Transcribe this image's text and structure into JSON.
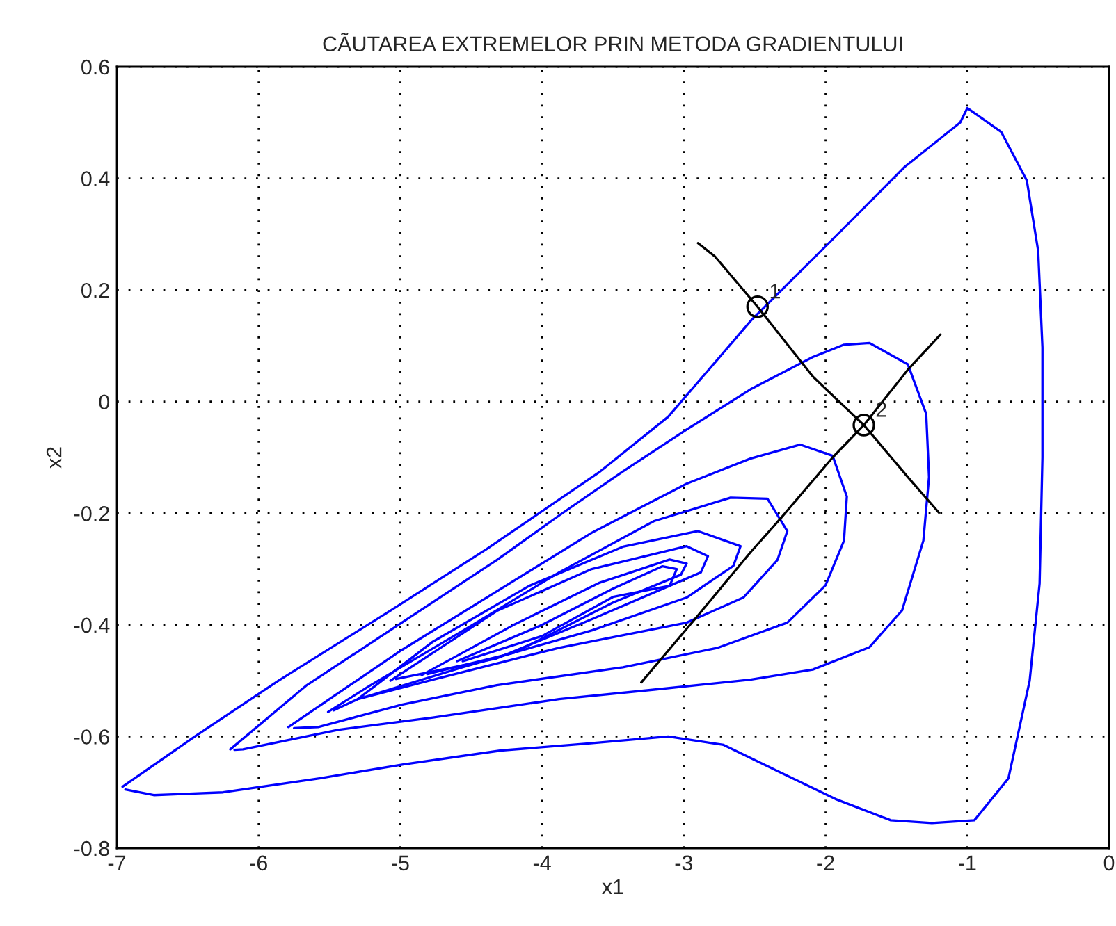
{
  "chart_data": {
    "type": "line",
    "title": "CÃUTAREA EXTREMELOR PRIN METODA GRADIENTULUI",
    "xlabel": "x1",
    "ylabel": "x2",
    "xlim": [
      -7,
      0
    ],
    "ylim": [
      -0.8,
      0.6
    ],
    "xticks": [
      -7,
      -6,
      -5,
      -4,
      -3,
      -2,
      -1,
      0
    ],
    "yticks": [
      -0.8,
      -0.6,
      -0.4,
      -0.2,
      0,
      0.2,
      0.4,
      0.6
    ],
    "grid": true,
    "line_style": "solid",
    "marker": "none",
    "series": [
      {
        "color": "#0000ff",
        "x": [
          -6.96,
          -6.45,
          -5.86,
          -5.08,
          -4.39,
          -3.6,
          -3.11,
          -2.52,
          -1.93,
          -1.44,
          -1.05,
          -1.0,
          -0.76,
          -0.58,
          -0.5,
          -0.47,
          -0.47,
          -0.49,
          -0.56,
          -0.71,
          -0.95,
          -1.25,
          -1.54,
          -1.93,
          -2.33,
          -2.72,
          -3.11,
          -3.7,
          -4.29,
          -4.98,
          -5.57,
          -6.25,
          -6.74,
          -6.94
        ],
        "values": [
          -0.69,
          -0.6,
          -0.5,
          -0.376,
          -0.264,
          -0.127,
          -0.027,
          0.147,
          0.296,
          0.421,
          0.5,
          0.526,
          0.483,
          0.396,
          0.27,
          0.097,
          -0.1,
          -0.326,
          -0.5,
          -0.675,
          -0.75,
          -0.755,
          -0.75,
          -0.712,
          -0.663,
          -0.615,
          -0.6,
          -0.613,
          -0.625,
          -0.65,
          -0.675,
          -0.7,
          -0.705,
          -0.695
        ]
      },
      {
        "color": "#0000ff",
        "x": [
          -6.2,
          -5.66,
          -4.99,
          -4.32,
          -3.88,
          -3.43,
          -2.98,
          -2.53,
          -2.09,
          -1.87,
          -1.69,
          -1.42,
          -1.29,
          -1.27,
          -1.31,
          -1.46,
          -1.69,
          -2.09,
          -2.53,
          -3.21,
          -3.88,
          -4.77,
          -5.44,
          -6.11,
          -6.17
        ],
        "values": [
          -0.623,
          -0.508,
          -0.396,
          -0.284,
          -0.204,
          -0.125,
          -0.05,
          0.022,
          0.08,
          0.102,
          0.105,
          0.067,
          -0.022,
          -0.135,
          -0.249,
          -0.374,
          -0.44,
          -0.48,
          -0.498,
          -0.516,
          -0.533,
          -0.566,
          -0.588,
          -0.623,
          -0.624
        ]
      },
      {
        "color": "#0000ff",
        "x": [
          -5.79,
          -4.99,
          -4.32,
          -3.65,
          -2.98,
          -2.53,
          -2.18,
          -1.95,
          -1.85,
          -1.87,
          -2.0,
          -2.27,
          -2.76,
          -3.43,
          -4.32,
          -4.99,
          -5.58,
          -5.75
        ],
        "values": [
          -0.583,
          -0.445,
          -0.34,
          -0.235,
          -0.147,
          -0.102,
          -0.077,
          -0.097,
          -0.17,
          -0.249,
          -0.329,
          -0.396,
          -0.441,
          -0.476,
          -0.508,
          -0.543,
          -0.583,
          -0.585
        ]
      },
      {
        "color": "#0000ff",
        "x": [
          -5.51,
          -5.21,
          -4.55,
          -3.88,
          -3.21,
          -2.67,
          -2.41,
          -2.27,
          -2.34,
          -2.58,
          -2.98,
          -3.88,
          -4.77,
          -5.3,
          -5.47
        ],
        "values": [
          -0.556,
          -0.508,
          -0.409,
          -0.306,
          -0.214,
          -0.172,
          -0.174,
          -0.232,
          -0.284,
          -0.351,
          -0.396,
          -0.441,
          -0.498,
          -0.533,
          -0.553
        ]
      },
      {
        "color": "#0000ff",
        "x": [
          -5.3,
          -4.77,
          -4.09,
          -3.43,
          -2.9,
          -2.6,
          -2.65,
          -2.98,
          -3.65,
          -4.55,
          -5.26
        ],
        "values": [
          -0.533,
          -0.43,
          -0.33,
          -0.26,
          -0.232,
          -0.259,
          -0.294,
          -0.351,
          -0.41,
          -0.475,
          -0.53
        ]
      },
      {
        "color": "#0000ff",
        "x": [
          -5.07,
          -4.32,
          -3.65,
          -2.98,
          -2.83,
          -2.88,
          -3.65,
          -4.32,
          -5.03
        ],
        "values": [
          -0.5,
          -0.375,
          -0.3,
          -0.259,
          -0.277,
          -0.306,
          -0.39,
          -0.46,
          -0.497
        ]
      },
      {
        "color": "#0000ff",
        "x": [
          -4.85,
          -4.2,
          -3.6,
          -3.1,
          -2.98,
          -3.02,
          -3.5,
          -4.2,
          -4.81
        ],
        "values": [
          -0.49,
          -0.4,
          -0.325,
          -0.283,
          -0.29,
          -0.31,
          -0.36,
          -0.45,
          -0.488
        ]
      },
      {
        "color": "#0000ff",
        "x": [
          -4.6,
          -4.0,
          -3.5,
          -3.15,
          -3.05,
          -3.1,
          -3.5,
          -4.0,
          -4.56
        ],
        "values": [
          -0.465,
          -0.4,
          -0.335,
          -0.295,
          -0.3,
          -0.33,
          -0.35,
          -0.42,
          -0.465
        ]
      },
      {
        "color": "#000000",
        "x": [
          -2.9,
          -2.78,
          -2.48,
          -2.09,
          -1.73,
          -1.42,
          -1.2
        ],
        "values": [
          0.284,
          0.26,
          0.17,
          0.045,
          -0.042,
          -0.135,
          -0.199
        ]
      },
      {
        "color": "#000000",
        "x": [
          -3.3,
          -2.9,
          -2.53,
          -2.32,
          -1.95,
          -1.73,
          -1.42,
          -1.19
        ],
        "values": [
          -0.503,
          -0.383,
          -0.27,
          -0.21,
          -0.1,
          -0.042,
          0.057,
          0.12
        ]
      },
      {
        "type": "scatter",
        "marker": "circle",
        "color": "#000000",
        "x": [
          -2.48,
          -1.73
        ],
        "values": [
          0.17,
          -0.042
        ]
      }
    ],
    "annotations": [
      {
        "text": "1",
        "x": -2.48,
        "y": 0.17
      },
      {
        "text": "2",
        "x": -1.73,
        "y": -0.042
      }
    ]
  }
}
